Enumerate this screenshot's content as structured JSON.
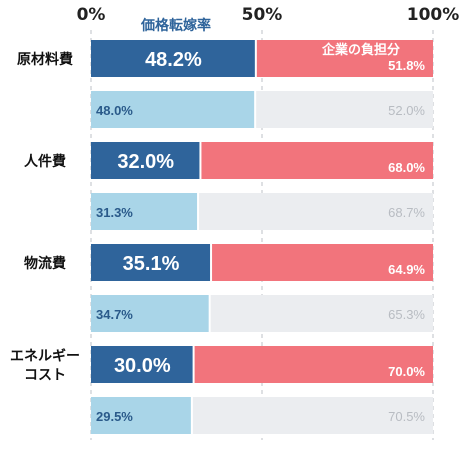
{
  "chart_data": {
    "type": "bar",
    "stacked": true,
    "orientation": "horizontal",
    "x_ticks": [
      "0%",
      "50%",
      "100%"
    ],
    "xlim": [
      0,
      100
    ],
    "categories": [
      "原材料費",
      "人件費",
      "物流費",
      "エネルギーコスト"
    ],
    "category_lines": [
      [
        "原材料費"
      ],
      [
        "人件費"
      ],
      [
        "物流費"
      ],
      [
        "エネルギー",
        "コスト"
      ]
    ],
    "annotations": {
      "pass_through": "価格転嫁率",
      "company_burden": "企業の負担分"
    },
    "rows": [
      {
        "category_index": 0,
        "primary": true,
        "pass": 48.2,
        "burden": 51.8,
        "pass_label": "48.2%",
        "burden_label": "51.8%"
      },
      {
        "category_index": 0,
        "primary": false,
        "pass": 48.0,
        "burden": 52.0,
        "pass_label": "48.0%",
        "burden_label": "52.0%"
      },
      {
        "category_index": 1,
        "primary": true,
        "pass": 32.0,
        "burden": 68.0,
        "pass_label": "32.0%",
        "burden_label": "68.0%"
      },
      {
        "category_index": 1,
        "primary": false,
        "pass": 31.3,
        "burden": 68.7,
        "pass_label": "31.3%",
        "burden_label": "68.7%"
      },
      {
        "category_index": 2,
        "primary": true,
        "pass": 35.1,
        "burden": 64.9,
        "pass_label": "35.1%",
        "burden_label": "64.9%"
      },
      {
        "category_index": 2,
        "primary": false,
        "pass": 34.7,
        "burden": 65.3,
        "pass_label": "34.7%",
        "burden_label": "65.3%"
      },
      {
        "category_index": 3,
        "primary": true,
        "pass": 30.0,
        "burden": 70.0,
        "pass_label": "30.0%",
        "burden_label": "70.0%"
      },
      {
        "category_index": 3,
        "primary": false,
        "pass": 29.5,
        "burden": 70.5,
        "pass_label": "29.5%",
        "burden_label": "70.5%"
      }
    ],
    "colors": {
      "primary_pass": "#2f649b",
      "primary_burden": "#f2747c",
      "secondary_pass": "#a9d5e8",
      "secondary_burden": "#ebedf0",
      "secondary_pass_text": "#2a5a8a",
      "secondary_burden_text": "#b8bcc2"
    }
  }
}
